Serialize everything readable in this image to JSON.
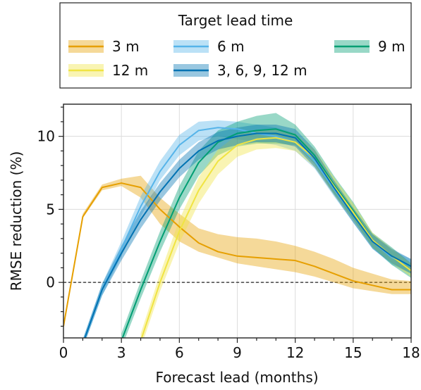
{
  "chart_data": {
    "type": "line",
    "xlabel": "Forecast lead (months)",
    "ylabel": "RMSE reduction (%)",
    "xlim": [
      0,
      18
    ],
    "ylim": [
      -3.8,
      12.2
    ],
    "xticks": [
      0,
      3,
      6,
      9,
      12,
      15,
      18
    ],
    "xtick_labels": [
      "0",
      "3",
      "6",
      "9",
      "12",
      "15",
      "18"
    ],
    "yticks": [
      0,
      5,
      10
    ],
    "ytick_labels": [
      "0",
      "5",
      "10"
    ],
    "grid": true,
    "reference_line_y": 0,
    "legend": {
      "title": "Target lead time",
      "placement": "top"
    },
    "series": [
      {
        "name": "3 m",
        "color": "#E69F00",
        "x": [
          0,
          1,
          2,
          3,
          4,
          5,
          6,
          7,
          8,
          9,
          10,
          11,
          12,
          13,
          14,
          15,
          16,
          17,
          18
        ],
        "values": [
          -3.0,
          4.5,
          6.5,
          6.8,
          6.5,
          5.0,
          3.8,
          2.7,
          2.1,
          1.8,
          1.7,
          1.6,
          1.5,
          1.1,
          0.6,
          0.1,
          -0.2,
          -0.5,
          -0.5
        ],
        "lower": [
          -3.0,
          4.4,
          6.3,
          6.6,
          5.8,
          4.0,
          2.8,
          2.1,
          1.7,
          1.3,
          1.1,
          0.9,
          0.7,
          0.4,
          0.0,
          -0.4,
          -0.6,
          -0.8,
          -0.8
        ],
        "upper": [
          -3.0,
          4.7,
          6.7,
          7.1,
          7.3,
          5.8,
          4.7,
          3.7,
          3.3,
          3.1,
          3.0,
          2.8,
          2.5,
          2.1,
          1.6,
          1.0,
          0.6,
          0.2,
          0.1
        ]
      },
      {
        "name": "6 m",
        "color": "#56B4E9",
        "x": [
          1,
          2,
          3,
          4,
          5,
          6,
          7,
          8,
          9,
          10,
          11,
          12,
          13,
          14,
          15,
          16,
          17,
          18
        ],
        "values": [
          -4.2,
          -0.5,
          2.3,
          5.2,
          7.6,
          9.4,
          10.4,
          10.6,
          10.5,
          10.2,
          10.0,
          9.6,
          8.3,
          6.4,
          4.6,
          2.8,
          1.7,
          1.1
        ],
        "lower": [
          -4.5,
          -0.9,
          1.8,
          4.5,
          7.0,
          8.7,
          9.7,
          10.0,
          9.8,
          9.6,
          9.4,
          9.0,
          7.8,
          5.9,
          4.1,
          2.3,
          1.2,
          0.6
        ],
        "upper": [
          -3.9,
          -0.1,
          2.8,
          5.9,
          8.3,
          10.1,
          11.0,
          11.1,
          11.0,
          10.8,
          10.6,
          10.2,
          8.8,
          6.9,
          5.1,
          3.3,
          2.2,
          1.6
        ]
      },
      {
        "name": "9 m",
        "color": "#009E73",
        "x": [
          3,
          4,
          5,
          6,
          7,
          8,
          9,
          10,
          11,
          12,
          13,
          14,
          15,
          16,
          17,
          18
        ],
        "values": [
          -4.0,
          -0.5,
          2.8,
          5.8,
          8.2,
          9.6,
          10.2,
          10.4,
          10.5,
          10.1,
          8.7,
          6.7,
          4.9,
          2.9,
          1.8,
          0.8
        ],
        "lower": [
          -4.5,
          -1.1,
          2.1,
          5.0,
          7.3,
          8.7,
          9.3,
          9.5,
          9.5,
          9.4,
          8.1,
          6.1,
          4.3,
          2.4,
          1.2,
          0.3
        ],
        "upper": [
          -3.5,
          0.1,
          3.5,
          6.6,
          9.0,
          10.4,
          11.0,
          11.4,
          11.6,
          10.8,
          9.3,
          7.3,
          5.5,
          3.4,
          2.4,
          1.3
        ]
      },
      {
        "name": "12 m",
        "color": "#F0E442",
        "x": [
          4,
          5,
          6,
          7,
          8,
          9,
          10,
          11,
          12,
          13,
          14,
          15,
          16,
          17,
          18
        ],
        "values": [
          -4.0,
          0.0,
          3.5,
          6.3,
          8.3,
          9.4,
          9.8,
          9.9,
          9.6,
          8.5,
          6.6,
          4.8,
          2.9,
          1.8,
          0.8
        ],
        "lower": [
          -4.5,
          -0.6,
          2.7,
          5.4,
          7.4,
          8.6,
          9.1,
          9.2,
          9.0,
          7.9,
          6.0,
          4.2,
          2.4,
          1.3,
          0.4
        ],
        "upper": [
          -3.5,
          0.6,
          4.3,
          7.2,
          9.1,
          10.1,
          10.4,
          10.5,
          10.2,
          9.1,
          7.2,
          5.4,
          3.4,
          2.3,
          1.3
        ]
      },
      {
        "name": "3, 6, 9, 12 m",
        "color": "#0072B2",
        "x": [
          1,
          2,
          3,
          4,
          5,
          6,
          7,
          8,
          9,
          10,
          11,
          12,
          13,
          14,
          15,
          16,
          17,
          18
        ],
        "values": [
          -4.2,
          -0.5,
          2.0,
          4.3,
          6.2,
          7.8,
          9.0,
          9.7,
          10.0,
          10.2,
          10.2,
          9.9,
          8.5,
          6.5,
          4.6,
          2.8,
          1.8,
          1.1
        ],
        "lower": [
          -4.5,
          -0.9,
          1.5,
          3.7,
          5.6,
          7.2,
          8.4,
          9.1,
          9.4,
          9.6,
          9.6,
          9.3,
          7.9,
          6.0,
          4.1,
          2.3,
          1.3,
          0.6
        ],
        "upper": [
          -3.9,
          -0.1,
          2.5,
          4.9,
          6.8,
          8.4,
          9.6,
          10.3,
          10.6,
          10.8,
          10.8,
          10.5,
          9.1,
          7.0,
          5.1,
          3.3,
          2.3,
          1.6
        ]
      }
    ]
  }
}
